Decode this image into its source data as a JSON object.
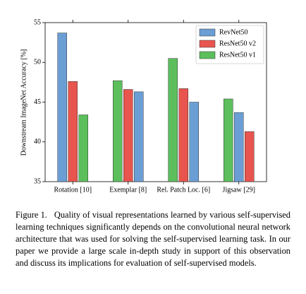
{
  "chart_data": {
    "type": "bar",
    "y_label": "Downstream ImageNet Accuracy [%]",
    "categories": [
      "Rotation [10]",
      "Exemplar [8]",
      "Rel. Patch Loc. [6]",
      "Jigsaw [29]"
    ],
    "series": [
      {
        "name": "RevNet50",
        "color": "#6b9ed4",
        "values": [
          53.7,
          46.3,
          45.0,
          43.7
        ]
      },
      {
        "name": "ResNet50 v2",
        "color": "#e8554e",
        "values": [
          47.6,
          46.6,
          46.7,
          41.3
        ]
      },
      {
        "name": "ResNet50 v1",
        "color": "#5cbf5c",
        "values": [
          43.4,
          47.7,
          50.5,
          45.4
        ]
      }
    ],
    "ylim": [
      35,
      55
    ],
    "yticks": [
      35,
      40,
      45,
      50,
      55
    ],
    "legend": "upper right"
  },
  "caption": {
    "label": "Figure 1.",
    "text": "Quality of visual representations learned by various self-supervised learning techniques significantly depends on the convolutional neural network architecture that was used for solving the self-supervised learning task. In our paper we provide a large scale in-depth study in support of this observation and discuss its implications for evaluation of self-supervised models."
  }
}
